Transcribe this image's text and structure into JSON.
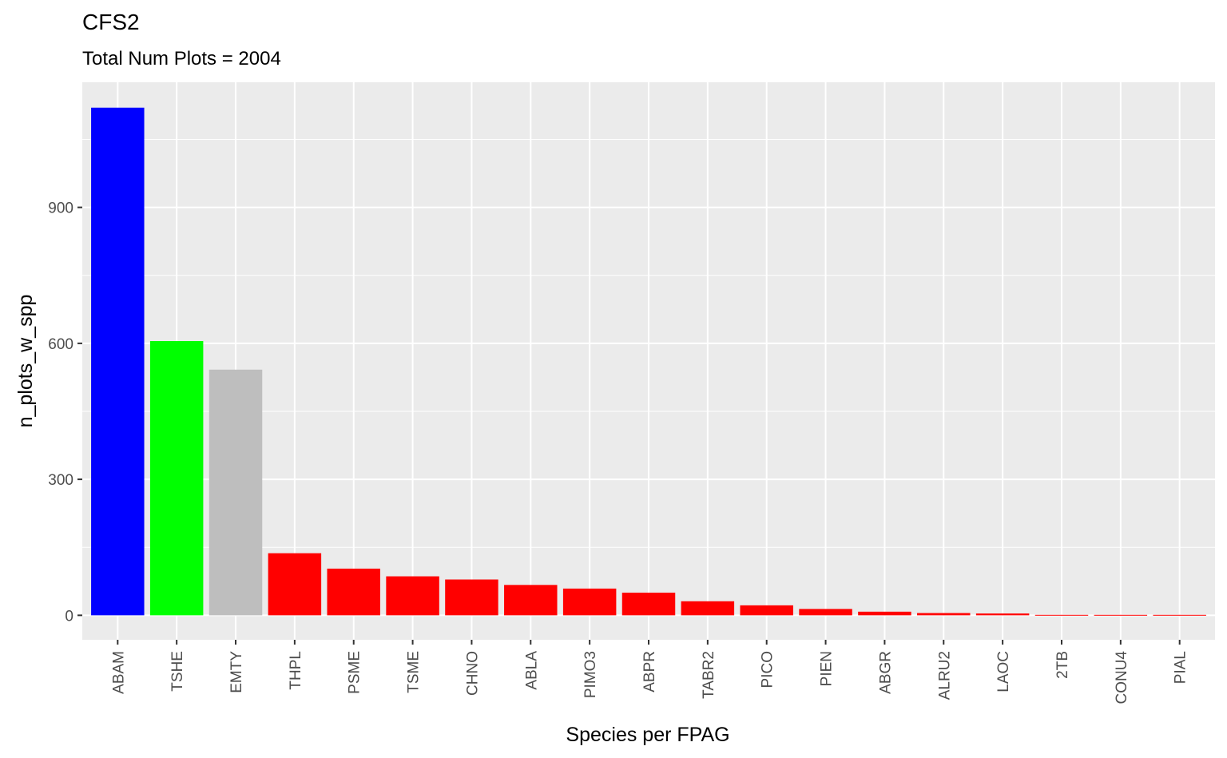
{
  "chart_data": {
    "type": "bar",
    "title": "CFS2",
    "subtitle": "Total Num Plots = 2004",
    "xlabel": "Species per FPAG",
    "ylabel": "n_plots_w_spp",
    "categories": [
      "ABAM",
      "TSHE",
      "EMTY",
      "THPL",
      "PSME",
      "TSME",
      "CHNO",
      "ABLA",
      "PIMO3",
      "ABPR",
      "TABR2",
      "PICO",
      "PIEN",
      "ABGR",
      "ALRU2",
      "LAOC",
      "2TB",
      "CONU4",
      "PIAL"
    ],
    "values": [
      1120,
      605,
      542,
      137,
      103,
      86,
      79,
      67,
      59,
      50,
      31,
      22,
      14,
      8,
      5,
      4,
      1,
      1,
      1
    ],
    "colors": [
      "#0000FF",
      "#00FF00",
      "#BEBEBE",
      "#FF0000",
      "#FF0000",
      "#FF0000",
      "#FF0000",
      "#FF0000",
      "#FF0000",
      "#FF0000",
      "#FF0000",
      "#FF0000",
      "#FF0000",
      "#FF0000",
      "#FF0000",
      "#FF0000",
      "#FF0000",
      "#FF0000",
      "#FF0000"
    ],
    "yticks": [
      0,
      300,
      600,
      900
    ],
    "ylim": [
      -54,
      1176
    ],
    "grid": true,
    "panel_background": "#EBEBEB",
    "legend": "none"
  }
}
